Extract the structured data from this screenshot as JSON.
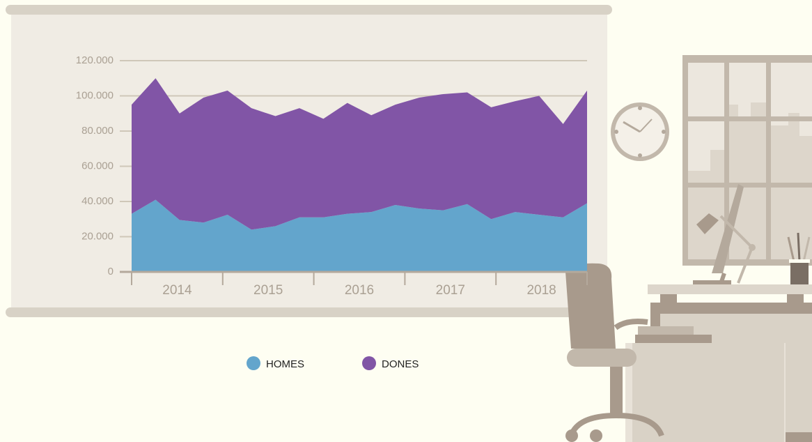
{
  "chart_data": {
    "type": "stacked_area",
    "categories": [
      null,
      null,
      null,
      null,
      null,
      null,
      null,
      null,
      null,
      null,
      null,
      null,
      null,
      null,
      null,
      null,
      null,
      null,
      null,
      null
    ],
    "year_labels": [
      "2014",
      "2015",
      "2016",
      "2017",
      "2018"
    ],
    "series": [
      {
        "name": "HOMES",
        "color": "#63a5cc",
        "values": [
          33000,
          41000,
          29500,
          28000,
          32500,
          24000,
          26000,
          31000,
          31000,
          33000,
          34000,
          38000,
          36000,
          35000,
          38500,
          30000,
          34000,
          32500,
          31000,
          39000
        ]
      },
      {
        "name": "DONES",
        "color": "#8155a6",
        "values": [
          62000,
          69000,
          60500,
          71000,
          70500,
          69000,
          62500,
          62000,
          56000,
          63000,
          55000,
          57000,
          63000,
          66000,
          63500,
          63500,
          63000,
          67500,
          53000,
          64000
        ]
      }
    ],
    "ylim": [
      0,
      120000
    ],
    "yticks": [
      0,
      {
        "value": 20000,
        "label": "20.000"
      },
      {
        "value": 40000,
        "label": "40.000"
      },
      {
        "value": 60000,
        "label": "60.000"
      },
      {
        "value": 80000,
        "label": "80.000"
      },
      {
        "value": 100000,
        "label": "100.000"
      },
      {
        "value": 120000,
        "label": "120.000"
      }
    ],
    "grid": true
  }
}
